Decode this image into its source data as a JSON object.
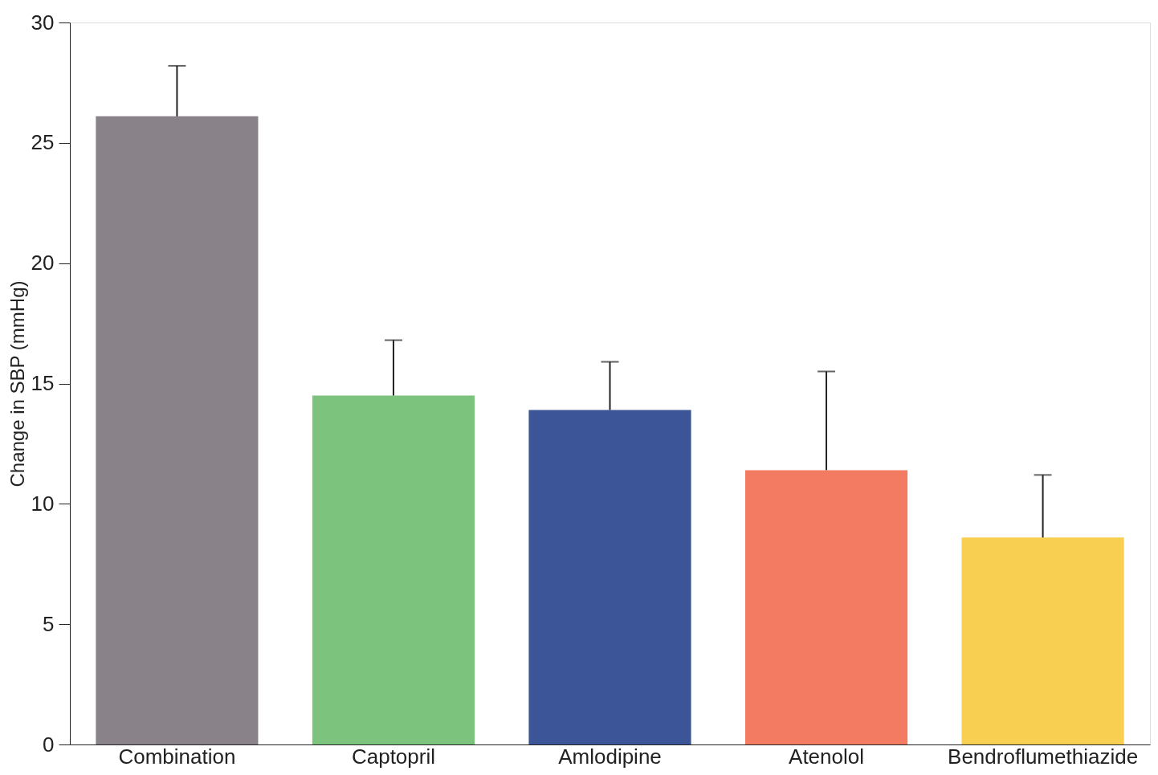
{
  "chart_data": {
    "type": "bar",
    "ylabel": "Change in SBP (mmHg)",
    "categories": [
      "Combination",
      "Captopril",
      "Amlodipine",
      "Atenolol",
      "Bendroflumethiazide"
    ],
    "values": [
      26.1,
      14.5,
      13.9,
      11.4,
      8.6
    ],
    "errors": [
      [
        26.1,
        28.2
      ],
      [
        14.5,
        16.8
      ],
      [
        13.9,
        15.9
      ],
      [
        11.4,
        15.5
      ],
      [
        8.6,
        11.2
      ]
    ],
    "colors": [
      "#8a8289",
      "#7cc47e",
      "#3b5598",
      "#f27b62",
      "#f8cf50"
    ],
    "ylim": [
      0,
      30
    ],
    "yticks": [
      0,
      5,
      10,
      15,
      20,
      25,
      30
    ],
    "grid": false
  }
}
